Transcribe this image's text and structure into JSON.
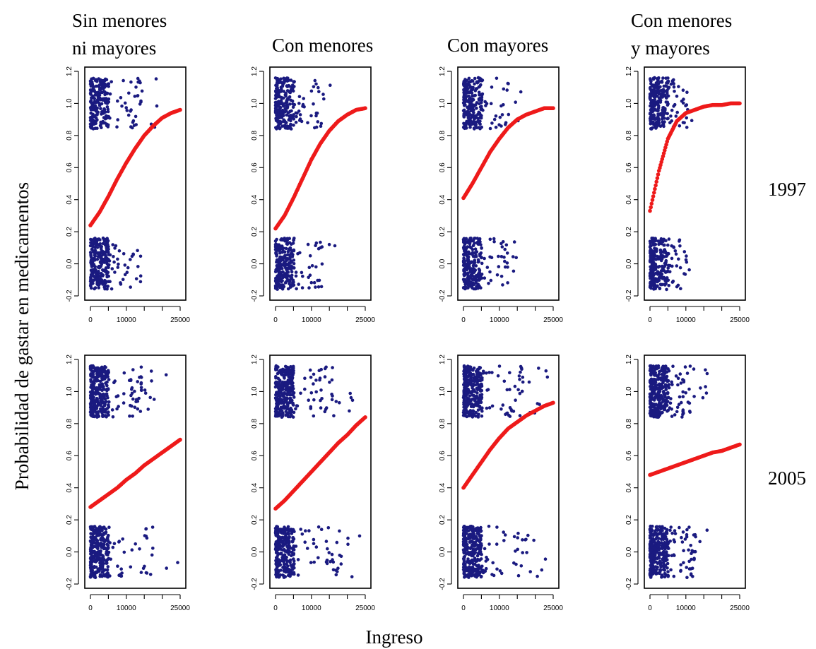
{
  "figure": {
    "ylabel": "Probabilidad de gastar  en medicamentos",
    "xlabel": "Ingreso"
  },
  "chart_data": {
    "type": "scatter",
    "xlabel": "Ingreso",
    "ylabel": "Probabilidad de gastar  en medicamentos",
    "xlim": [
      0,
      25000
    ],
    "ylim": [
      -0.2,
      1.2
    ],
    "x_ticks": [
      0,
      10000,
      25000
    ],
    "x_tick_labels": [
      "0",
      "10000",
      "25000"
    ],
    "y_ticks": [
      -0.2,
      0.0,
      0.2,
      0.4,
      0.6,
      0.8,
      1.0,
      1.2
    ],
    "y_tick_labels": [
      "-0.2",
      "0.0",
      "0.2",
      "0.4",
      "0.6",
      "0.8",
      "1.0",
      "1.2"
    ],
    "columns": [
      {
        "title": [
          "Sin menores",
          "ni mayores"
        ]
      },
      {
        "title": [
          "Con menores"
        ]
      },
      {
        "title": [
          "Con mayores"
        ]
      },
      {
        "title": [
          "Con menores",
          "y mayores"
        ]
      }
    ],
    "rows": [
      {
        "label": "1997"
      },
      {
        "label": "2005"
      }
    ],
    "panels": [
      {
        "row": 0,
        "col": 0,
        "curve": {
          "x": [
            0,
            2500,
            5000,
            7500,
            10000,
            12500,
            15000,
            17500,
            20000,
            22500,
            25000
          ],
          "y": [
            0.24,
            0.32,
            0.42,
            0.53,
            0.63,
            0.72,
            0.8,
            0.86,
            0.91,
            0.94,
            0.96
          ]
        },
        "scatter_max_x": 19000
      },
      {
        "row": 0,
        "col": 1,
        "curve": {
          "x": [
            0,
            2500,
            5000,
            7500,
            10000,
            12500,
            15000,
            17500,
            20000,
            22500,
            25000
          ],
          "y": [
            0.22,
            0.3,
            0.41,
            0.53,
            0.65,
            0.75,
            0.83,
            0.89,
            0.93,
            0.96,
            0.97
          ]
        },
        "scatter_max_x": 17000
      },
      {
        "row": 0,
        "col": 2,
        "curve": {
          "x": [
            0,
            2500,
            5000,
            7500,
            10000,
            12500,
            15000,
            17500,
            20000,
            22500,
            25000
          ],
          "y": [
            0.41,
            0.5,
            0.6,
            0.7,
            0.78,
            0.85,
            0.9,
            0.93,
            0.95,
            0.97,
            0.97
          ]
        },
        "scatter_max_x": 16000
      },
      {
        "row": 0,
        "col": 3,
        "curve": {
          "x": [
            0,
            2500,
            5000,
            7500,
            10000,
            12500,
            15000,
            17500,
            20000,
            22500,
            25000
          ],
          "y": [
            0.33,
            0.58,
            0.78,
            0.89,
            0.94,
            0.96,
            0.98,
            0.99,
            0.99,
            1.0,
            1.0
          ]
        },
        "scatter_max_x": 12000
      },
      {
        "row": 1,
        "col": 0,
        "curve": {
          "x": [
            0,
            2500,
            5000,
            7500,
            10000,
            12500,
            15000,
            17500,
            20000,
            22500,
            25000
          ],
          "y": [
            0.28,
            0.32,
            0.36,
            0.4,
            0.45,
            0.49,
            0.54,
            0.58,
            0.62,
            0.66,
            0.7
          ]
        },
        "scatter_max_x": 25000
      },
      {
        "row": 1,
        "col": 1,
        "curve": {
          "x": [
            0,
            2500,
            5000,
            7500,
            10000,
            12500,
            15000,
            17500,
            20000,
            22500,
            25000
          ],
          "y": [
            0.27,
            0.32,
            0.38,
            0.44,
            0.5,
            0.56,
            0.62,
            0.68,
            0.73,
            0.79,
            0.84
          ]
        },
        "scatter_max_x": 24000
      },
      {
        "row": 1,
        "col": 2,
        "curve": {
          "x": [
            0,
            2500,
            5000,
            7500,
            10000,
            12500,
            15000,
            17500,
            20000,
            22500,
            25000
          ],
          "y": [
            0.4,
            0.48,
            0.56,
            0.64,
            0.71,
            0.77,
            0.81,
            0.85,
            0.88,
            0.91,
            0.93
          ]
        },
        "scatter_max_x": 24000
      },
      {
        "row": 1,
        "col": 3,
        "curve": {
          "x": [
            0,
            2500,
            5000,
            7500,
            10000,
            12500,
            15000,
            17500,
            20000,
            22500,
            25000
          ],
          "y": [
            0.48,
            0.5,
            0.52,
            0.54,
            0.56,
            0.58,
            0.6,
            0.62,
            0.63,
            0.65,
            0.67
          ]
        },
        "scatter_max_x": 16000
      }
    ]
  }
}
